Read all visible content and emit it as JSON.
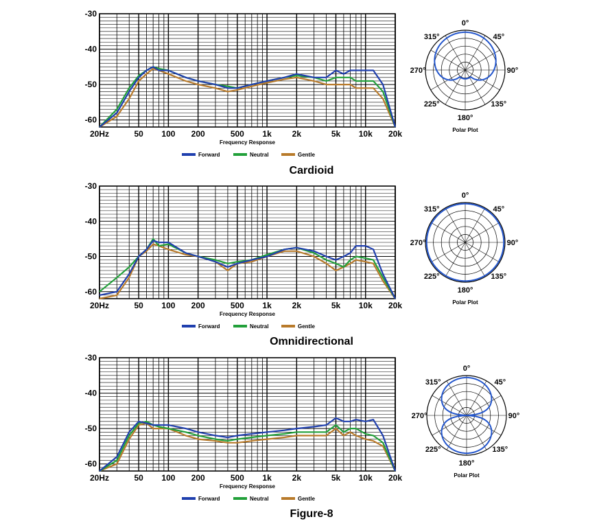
{
  "colors": {
    "forward": "#1f3fae",
    "neutral": "#22a03a",
    "gentle": "#b87a2a",
    "polar": "#2255cc",
    "grid": "#000000"
  },
  "x_ticks": [
    {
      "v": 20,
      "label": "20Hz"
    },
    {
      "v": 50,
      "label": "50"
    },
    {
      "v": 100,
      "label": "100"
    },
    {
      "v": 200,
      "label": "200"
    },
    {
      "v": 500,
      "label": "500"
    },
    {
      "v": 1000,
      "label": "1k"
    },
    {
      "v": 2000,
      "label": "2k"
    },
    {
      "v": 5000,
      "label": "5k"
    },
    {
      "v": 10000,
      "label": "10k"
    },
    {
      "v": 20000,
      "label": "20k"
    }
  ],
  "y_ticks": [
    {
      "v": -30,
      "label": "-30"
    },
    {
      "v": -40,
      "label": "-40"
    },
    {
      "v": -50,
      "label": "-50"
    },
    {
      "v": -60,
      "label": "-60"
    }
  ],
  "legend": [
    "Forward",
    "Neutral",
    "Gentle"
  ],
  "polar_angle_labels": [
    {
      "deg": 0,
      "label": "0°"
    },
    {
      "deg": 45,
      "label": "45°"
    },
    {
      "deg": 90,
      "label": "90°"
    },
    {
      "deg": 135,
      "label": "135°"
    },
    {
      "deg": 180,
      "label": "180°"
    },
    {
      "deg": 225,
      "label": "225°"
    },
    {
      "deg": 270,
      "label": "270°"
    },
    {
      "deg": 315,
      "label": "315°"
    }
  ],
  "chart_data": [
    {
      "type": "line",
      "caption": "Cardioid",
      "xlabel": "Frequency Response",
      "ylabel": "",
      "xscale": "log",
      "xlim": [
        20,
        20000
      ],
      "ylim": [
        -62,
        -30
      ],
      "grid": true,
      "legend_position": "bottom",
      "x": [
        20,
        30,
        40,
        50,
        60,
        70,
        80,
        100,
        150,
        200,
        300,
        400,
        500,
        700,
        1000,
        1500,
        2000,
        3000,
        4000,
        5000,
        6000,
        7000,
        8000,
        10000,
        12000,
        15000,
        20000
      ],
      "series": [
        {
          "name": "Forward",
          "values": [
            -62,
            -58,
            -52,
            -48,
            -46,
            -45,
            -46,
            -46,
            -48,
            -49,
            -50,
            -51,
            -51,
            -50,
            -49,
            -48,
            -47,
            -48,
            -48,
            -46,
            -47,
            -46,
            -46,
            -46,
            -46,
            -50,
            -62
          ]
        },
        {
          "name": "Neutral",
          "values": [
            -62,
            -57,
            -51,
            -47.5,
            -46,
            -45,
            -45.5,
            -46,
            -48,
            -49,
            -50,
            -50.5,
            -51,
            -50,
            -49,
            -48,
            -47.5,
            -48,
            -49,
            -48,
            -48,
            -48,
            -49,
            -49,
            -49,
            -52,
            -62
          ]
        },
        {
          "name": "Gentle",
          "values": [
            -62,
            -59,
            -54,
            -49,
            -47,
            -45.5,
            -46,
            -47,
            -49,
            -50,
            -51,
            -52,
            -51.5,
            -50.5,
            -49.5,
            -48.5,
            -48,
            -49,
            -50,
            -50,
            -50,
            -50,
            -51,
            -51,
            -51,
            -54,
            -62
          ]
        }
      ],
      "polar": {
        "title": "Polar Plot",
        "pattern": "cardioid"
      }
    },
    {
      "type": "line",
      "caption": "Omnidirectional",
      "xlabel": "Frequency Response",
      "ylabel": "",
      "xscale": "log",
      "xlim": [
        20,
        20000
      ],
      "ylim": [
        -62,
        -30
      ],
      "grid": true,
      "legend_position": "bottom",
      "x": [
        20,
        30,
        40,
        50,
        60,
        70,
        80,
        100,
        150,
        200,
        300,
        400,
        500,
        700,
        1000,
        1500,
        2000,
        3000,
        4000,
        5000,
        6000,
        7000,
        8000,
        10000,
        12000,
        15000,
        20000
      ],
      "series": [
        {
          "name": "Forward",
          "values": [
            -61,
            -60,
            -55,
            -50,
            -48,
            -45.5,
            -46,
            -46,
            -49,
            -50,
            -51.5,
            -53,
            -52,
            -51,
            -50,
            -48,
            -47.5,
            -48.5,
            -50,
            -51,
            -50,
            -49,
            -47,
            -47,
            -48,
            -55,
            -62
          ]
        },
        {
          "name": "Neutral",
          "values": [
            -60,
            -56,
            -53,
            -50,
            -48,
            -45,
            -47,
            -46.5,
            -49,
            -50,
            -51,
            -52,
            -51.5,
            -51,
            -49.5,
            -48,
            -47.5,
            -49,
            -51,
            -52,
            -53,
            -51,
            -50,
            -50.5,
            -51,
            -56,
            -62
          ]
        },
        {
          "name": "Gentle",
          "values": [
            -62,
            -61,
            -56,
            -50,
            -48.5,
            -46.5,
            -47,
            -48,
            -49.5,
            -50,
            -51.5,
            -54,
            -52,
            -51.5,
            -50,
            -48.5,
            -48.5,
            -50,
            -52,
            -54,
            -53,
            -52,
            -51,
            -51.5,
            -52,
            -57,
            -62
          ]
        }
      ],
      "polar": {
        "title": "Polar Plot",
        "pattern": "omni"
      }
    },
    {
      "type": "line",
      "caption": "Figure-8",
      "xlabel": "Frequency Response",
      "ylabel": "",
      "xscale": "log",
      "xlim": [
        20,
        20000
      ],
      "ylim": [
        -62,
        -30
      ],
      "grid": true,
      "legend_position": "bottom",
      "x": [
        20,
        30,
        40,
        50,
        60,
        70,
        80,
        100,
        150,
        200,
        300,
        400,
        500,
        700,
        1000,
        1500,
        2000,
        3000,
        4000,
        5000,
        6000,
        7000,
        8000,
        10000,
        12000,
        15000,
        20000
      ],
      "series": [
        {
          "name": "Forward",
          "values": [
            -62,
            -58,
            -51,
            -48,
            -48.5,
            -49,
            -49,
            -49,
            -50,
            -51,
            -52,
            -52.5,
            -52,
            -51.5,
            -51,
            -50.5,
            -50,
            -49.5,
            -49,
            -47,
            -48,
            -48,
            -47.5,
            -48,
            -47.5,
            -52,
            -62
          ]
        },
        {
          "name": "Neutral",
          "values": [
            -62,
            -59,
            -52,
            -48.5,
            -48,
            -49,
            -49.5,
            -50,
            -51,
            -52,
            -53,
            -53.5,
            -53,
            -52.5,
            -52,
            -51.5,
            -51,
            -51,
            -51,
            -49,
            -51,
            -50,
            -50,
            -51.5,
            -52,
            -54,
            -62
          ]
        },
        {
          "name": "Gentle",
          "values": [
            -62,
            -60,
            -53,
            -49,
            -48.5,
            -50,
            -50,
            -50,
            -52,
            -53,
            -53.5,
            -54,
            -54,
            -53.5,
            -53,
            -52.5,
            -52,
            -52,
            -52,
            -50,
            -52,
            -51,
            -52,
            -53,
            -53.5,
            -55,
            -62
          ]
        }
      ],
      "polar": {
        "title": "Polar Plot",
        "pattern": "figure8"
      }
    }
  ]
}
